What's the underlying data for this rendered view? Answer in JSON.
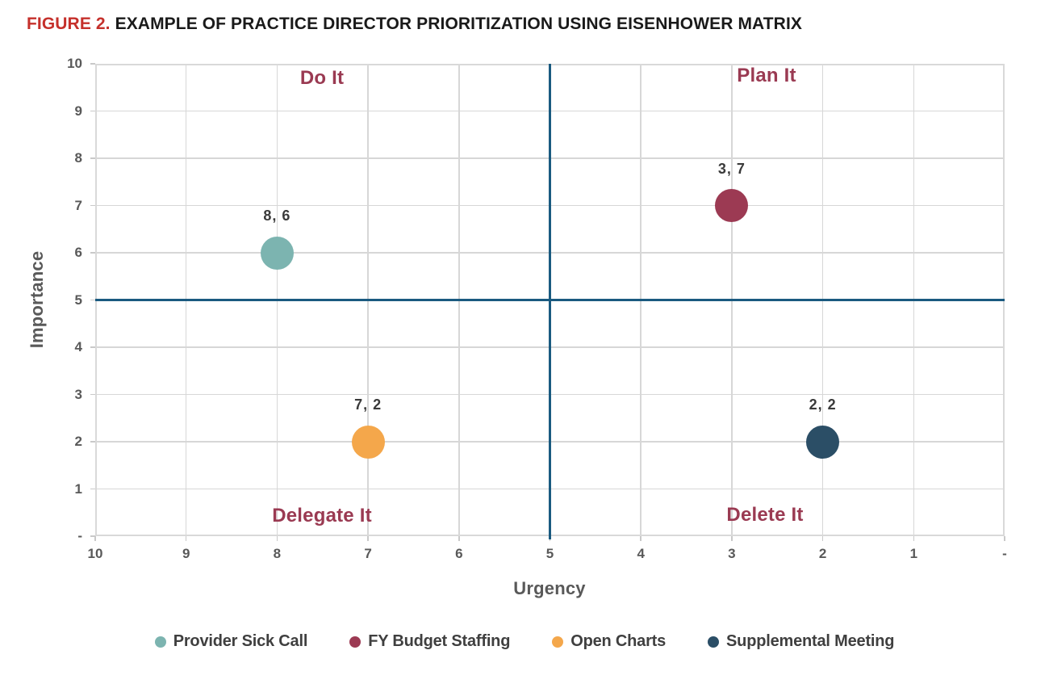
{
  "figure": {
    "label": "FIGURE 2.",
    "title": "EXAMPLE OF PRACTICE DIRECTOR PRIORITIZATION USING EISENHOWER MATRIX"
  },
  "colors": {
    "figure_label_red": "#c5302b",
    "title_text": "#1a1a1a",
    "axis_text": "#595959",
    "gridline": "#d7d7d7",
    "plot_border": "#d9d9d9",
    "crosshair_blue": "#1a5a80",
    "quadrant_label": "#9a3a52",
    "data_label_text": "#3a3a3a",
    "legend_text": "#3f3f3f",
    "background": "#ffffff"
  },
  "chart_data": {
    "type": "scatter",
    "title": "Example of Practice Director Prioritization Using Eisenhower Matrix",
    "xlabel": "Urgency",
    "ylabel": "Importance",
    "xlim": [
      10,
      0
    ],
    "ylim": [
      0,
      10
    ],
    "x_axis_reversed": true,
    "grid": true,
    "x_ticks": {
      "values": [
        10,
        9,
        8,
        7,
        6,
        5,
        4,
        3,
        2,
        1,
        0
      ],
      "labels": [
        "10",
        "9",
        "8",
        "7",
        "6",
        "5",
        "4",
        "3",
        "2",
        "1",
        "-"
      ]
    },
    "y_ticks": {
      "values": [
        10,
        9,
        8,
        7,
        6,
        5,
        4,
        3,
        2,
        1,
        0
      ],
      "labels": [
        "10",
        "9",
        "8",
        "7",
        "6",
        "5",
        "4",
        "3",
        "2",
        "1",
        "-"
      ]
    },
    "crosshair": {
      "x": 5,
      "y": 5,
      "color": "#1a5a80"
    },
    "quadrants": [
      {
        "name": "Do It",
        "position": "top-left"
      },
      {
        "name": "Plan It",
        "position": "top-right"
      },
      {
        "name": "Delegate It",
        "position": "bottom-left"
      },
      {
        "name": "Delete It",
        "position": "bottom-right"
      }
    ],
    "series": [
      {
        "name": "Provider Sick Call",
        "x": 8,
        "y": 6,
        "label": "8, 6",
        "color": "#7cb4b0"
      },
      {
        "name": "FY Budget Staffing",
        "x": 3,
        "y": 7,
        "label": "3, 7",
        "color": "#9c3a53"
      },
      {
        "name": "Open Charts",
        "x": 7,
        "y": 2,
        "label": "7, 2",
        "color": "#f4a74b"
      },
      {
        "name": "Supplemental Meeting",
        "x": 2,
        "y": 2,
        "label": "2, 2",
        "color": "#2b4e66"
      }
    ],
    "legend_position": "bottom"
  }
}
